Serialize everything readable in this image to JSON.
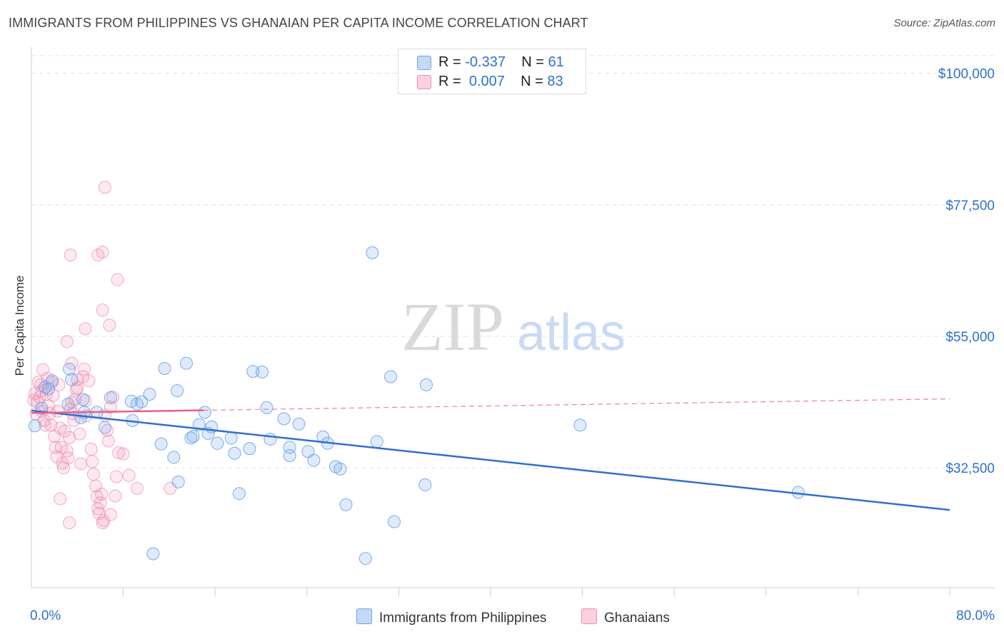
{
  "title": "IMMIGRANTS FROM PHILIPPINES VS GHANAIAN PER CAPITA INCOME CORRELATION CHART",
  "source": "Source: ZipAtlas.com",
  "watermark": {
    "zip": "ZIP",
    "atlas": "atlas"
  },
  "legend": {
    "rows": [
      {
        "r_label": "R =",
        "r_value": "-0.337",
        "n_label": "N =",
        "n_value": "61"
      },
      {
        "r_label": "R =",
        "r_value": "0.007",
        "n_label": "N =",
        "n_value": "83"
      }
    ]
  },
  "colors": {
    "blue": "#6fa3e8",
    "blue_line": "#2f6fd0",
    "pink": "#f08cb0",
    "pink_line": "#e8608a",
    "tick_text": "#2f6fd0"
  },
  "chart_data": {
    "type": "scatter",
    "title": "IMMIGRANTS FROM PHILIPPINES VS GHANAIAN PER CAPITA INCOME CORRELATION CHART",
    "xlabel": "",
    "ylabel": "Per Capita Income",
    "xlim": [
      0,
      80
    ],
    "ylim": [
      12000,
      103000
    ],
    "x_tick_labels": [
      "0.0%",
      "80.0%"
    ],
    "y_ticks": [
      32500,
      55000,
      77500,
      100000
    ],
    "y_tick_labels": [
      "$32,500",
      "$55,000",
      "$77,500",
      "$100,000"
    ],
    "grid": true,
    "legend_position": "top-center",
    "series": [
      {
        "name": "Immigrants from Philippines",
        "r": -0.337,
        "n": 61,
        "trend": {
          "x": [
            0,
            80
          ],
          "y": [
            42300,
            25300
          ]
        },
        "points": [
          [
            0.3,
            39700
          ],
          [
            1.2,
            46300
          ],
          [
            1.8,
            47400
          ],
          [
            3.3,
            49400
          ],
          [
            3.5,
            47600
          ],
          [
            1.5,
            46000
          ],
          [
            3.2,
            43400
          ],
          [
            4.5,
            44200
          ],
          [
            4.3,
            41100
          ],
          [
            4.6,
            42000
          ],
          [
            5.7,
            42000
          ],
          [
            6.4,
            39400
          ],
          [
            6.9,
            44500
          ],
          [
            8.7,
            43900
          ],
          [
            9.2,
            43400
          ],
          [
            8.8,
            40600
          ],
          [
            9.6,
            43800
          ],
          [
            10.3,
            45100
          ],
          [
            11.3,
            36600
          ],
          [
            12.4,
            34300
          ],
          [
            12.8,
            30100
          ],
          [
            11.6,
            49500
          ],
          [
            13.5,
            50400
          ],
          [
            12.7,
            45700
          ],
          [
            13.9,
            37600
          ],
          [
            14.1,
            37900
          ],
          [
            14.6,
            39900
          ],
          [
            15.4,
            38400
          ],
          [
            15.7,
            39500
          ],
          [
            16.2,
            36700
          ],
          [
            15.1,
            42000
          ],
          [
            17.7,
            35000
          ],
          [
            17.4,
            37600
          ],
          [
            18.1,
            28100
          ],
          [
            19.0,
            35800
          ],
          [
            19.3,
            49000
          ],
          [
            20.1,
            48900
          ],
          [
            20.5,
            42800
          ],
          [
            20.8,
            37400
          ],
          [
            22.0,
            40900
          ],
          [
            22.5,
            34600
          ],
          [
            22.5,
            36000
          ],
          [
            23.3,
            40000
          ],
          [
            24.1,
            35300
          ],
          [
            24.6,
            33800
          ],
          [
            25.4,
            37800
          ],
          [
            25.8,
            36700
          ],
          [
            26.5,
            32700
          ],
          [
            26.9,
            32300
          ],
          [
            27.4,
            26200
          ],
          [
            29.7,
            69300
          ],
          [
            30.1,
            37000
          ],
          [
            31.3,
            48100
          ],
          [
            31.6,
            23300
          ],
          [
            34.4,
            46700
          ],
          [
            34.3,
            29600
          ],
          [
            47.8,
            39800
          ],
          [
            66.8,
            28300
          ],
          [
            10.6,
            17800
          ],
          [
            29.1,
            17000
          ],
          [
            0.9,
            42700
          ]
        ]
      },
      {
        "name": "Ghanaians",
        "r": 0.007,
        "n": 83,
        "trend": {
          "x": [
            0,
            80
          ],
          "y": [
            41900,
            44300
          ]
        },
        "trend_solid_to_x": 15,
        "points": [
          [
            0.2,
            44100
          ],
          [
            0.3,
            45200
          ],
          [
            0.5,
            43800
          ],
          [
            0.4,
            41700
          ],
          [
            0.6,
            47200
          ],
          [
            0.8,
            46700
          ],
          [
            0.7,
            44600
          ],
          [
            0.9,
            45700
          ],
          [
            1.0,
            49300
          ],
          [
            0.9,
            42200
          ],
          [
            1.1,
            40600
          ],
          [
            1.2,
            39800
          ],
          [
            1.4,
            47800
          ],
          [
            1.3,
            45100
          ],
          [
            1.5,
            43100
          ],
          [
            1.6,
            41800
          ],
          [
            1.7,
            39800
          ],
          [
            1.8,
            47100
          ],
          [
            1.9,
            44900
          ],
          [
            2.0,
            37900
          ],
          [
            2.1,
            36000
          ],
          [
            2.2,
            34400
          ],
          [
            2.3,
            42200
          ],
          [
            2.4,
            46700
          ],
          [
            2.5,
            39300
          ],
          [
            2.6,
            36000
          ],
          [
            2.7,
            33300
          ],
          [
            2.8,
            32500
          ],
          [
            2.9,
            38800
          ],
          [
            3.1,
            35400
          ],
          [
            3.2,
            34200
          ],
          [
            3.3,
            37700
          ],
          [
            3.4,
            42600
          ],
          [
            3.5,
            43700
          ],
          [
            3.6,
            41800
          ],
          [
            3.7,
            40600
          ],
          [
            3.8,
            44200
          ],
          [
            3.9,
            45900
          ],
          [
            4.0,
            46200
          ],
          [
            4.2,
            38300
          ],
          [
            4.3,
            33200
          ],
          [
            4.5,
            48100
          ],
          [
            4.6,
            49400
          ],
          [
            4.7,
            44000
          ],
          [
            4.8,
            41400
          ],
          [
            5.0,
            47400
          ],
          [
            5.2,
            35700
          ],
          [
            5.3,
            33600
          ],
          [
            5.4,
            31400
          ],
          [
            5.6,
            29400
          ],
          [
            5.7,
            27600
          ],
          [
            5.8,
            25500
          ],
          [
            5.9,
            24700
          ],
          [
            6.0,
            26500
          ],
          [
            6.1,
            28000
          ],
          [
            6.2,
            23100
          ],
          [
            6.3,
            23500
          ],
          [
            6.4,
            41500
          ],
          [
            6.6,
            38900
          ],
          [
            6.7,
            37100
          ],
          [
            6.9,
            42900
          ],
          [
            7.1,
            44600
          ],
          [
            3.1,
            54100
          ],
          [
            3.5,
            50400
          ],
          [
            4.0,
            47600
          ],
          [
            3.4,
            68900
          ],
          [
            4.7,
            56300
          ],
          [
            6.2,
            59500
          ],
          [
            5.8,
            68900
          ],
          [
            6.2,
            69400
          ],
          [
            6.4,
            80500
          ],
          [
            6.8,
            56900
          ],
          [
            7.5,
            64700
          ],
          [
            7.3,
            27700
          ],
          [
            7.6,
            35100
          ],
          [
            7.4,
            31000
          ],
          [
            8.0,
            34900
          ],
          [
            8.5,
            31200
          ],
          [
            6.9,
            24500
          ],
          [
            9.2,
            29000
          ],
          [
            12.1,
            29000
          ],
          [
            2.5,
            27200
          ],
          [
            3.3,
            23100
          ]
        ]
      }
    ]
  }
}
